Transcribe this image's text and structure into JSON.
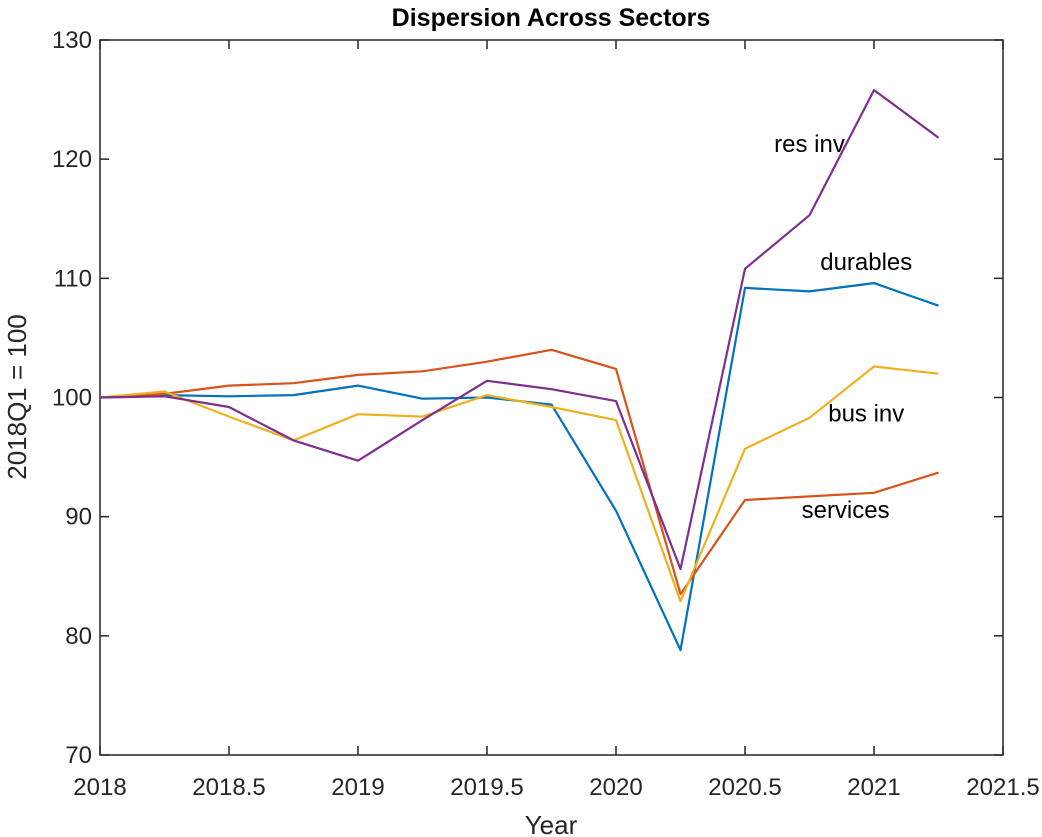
{
  "chart_data": {
    "type": "line",
    "title": "Dispersion Across Sectors",
    "xlabel": "Year",
    "ylabel": "2018Q1 = 100",
    "xlim": [
      2018,
      2021.5
    ],
    "ylim": [
      70,
      130
    ],
    "xticks": [
      2018,
      2018.5,
      2019,
      2019.5,
      2020,
      2020.5,
      2021,
      2021.5
    ],
    "xtick_labels": [
      "2018",
      "2018.5",
      "2019",
      "2019.5",
      "2020",
      "2020.5",
      "2021",
      "2021.5"
    ],
    "yticks": [
      70,
      80,
      90,
      100,
      110,
      120,
      130
    ],
    "ytick_labels": [
      "70",
      "80",
      "90",
      "100",
      "110",
      "120",
      "130"
    ],
    "grid": false,
    "legend": "none",
    "x": [
      2018,
      2018.25,
      2018.5,
      2018.75,
      2019,
      2019.25,
      2019.5,
      2019.75,
      2020,
      2020.25,
      2020.5,
      2020.75,
      2021,
      2021.25
    ],
    "series": [
      {
        "name": "durables",
        "color": "#0072BD",
        "values": [
          100,
          100.2,
          100.1,
          100.2,
          101.0,
          99.9,
          100.0,
          99.4,
          90.5,
          78.8,
          109.2,
          108.9,
          109.6,
          107.7
        ]
      },
      {
        "name": "services",
        "color": "#D95319",
        "values": [
          100,
          100.3,
          101.0,
          101.2,
          101.9,
          102.2,
          103.0,
          104.0,
          102.4,
          83.5,
          91.4,
          91.7,
          92.0,
          93.7
        ]
      },
      {
        "name": "bus inv",
        "color": "#EDB120",
        "values": [
          100,
          100.5,
          98.4,
          96.4,
          98.6,
          98.4,
          100.2,
          99.2,
          98.1,
          82.9,
          95.7,
          98.3,
          102.6,
          102.0
        ]
      },
      {
        "name": "res inv",
        "color": "#7E2F8E",
        "values": [
          100,
          100.1,
          99.2,
          96.4,
          94.7,
          98.1,
          101.4,
          100.7,
          99.7,
          85.6,
          110.8,
          115.3,
          125.8,
          121.8
        ]
      }
    ],
    "annotations": [
      {
        "text": "res inv",
        "x": 2020.75,
        "y": 120.6
      },
      {
        "text": "durables",
        "x": 2020.97,
        "y": 110.7
      },
      {
        "text": "bus inv",
        "x": 2020.97,
        "y": 98.0
      },
      {
        "text": "services",
        "x": 2020.89,
        "y": 89.9
      }
    ]
  }
}
